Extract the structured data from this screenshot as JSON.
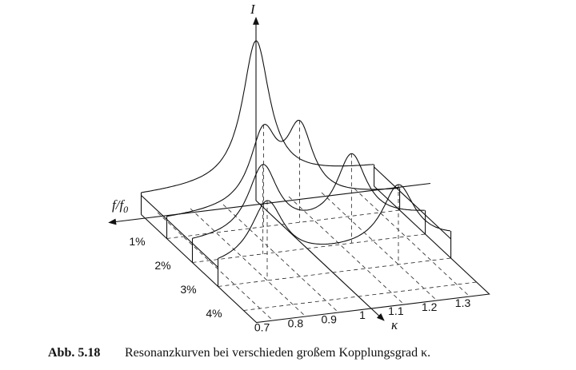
{
  "labels": {
    "intensity": "I",
    "frequency": "f/f",
    "frequency_sub": "0",
    "coupling": "κ"
  },
  "detuning_ticks": [
    "1%",
    "2%",
    "3%",
    "4%"
  ],
  "coupling_ticks": [
    "0.7",
    "0.8",
    "0.9",
    "1",
    "1.1",
    "1.2",
    "1.3"
  ],
  "caption": {
    "label": "Abb. 5.18",
    "text": "Resonanzkurven bei verschieden großem Kopplungsgrad κ."
  }
}
